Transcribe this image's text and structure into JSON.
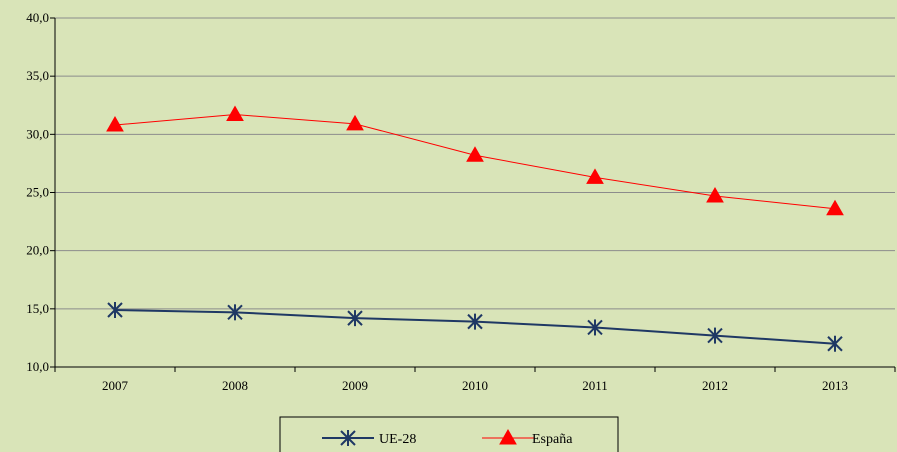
{
  "chart_data": {
    "type": "line",
    "title": "",
    "xlabel": "",
    "ylabel": "",
    "categories": [
      "2007",
      "2008",
      "2009",
      "2010",
      "2011",
      "2012",
      "2013"
    ],
    "ylim": [
      10,
      40
    ],
    "yticks": [
      10,
      15,
      20,
      25,
      30,
      35,
      40
    ],
    "ytick_labels": [
      "10,0",
      "15,0",
      "20,0",
      "25,0",
      "30,0",
      "35,0",
      "40,0"
    ],
    "grid": true,
    "legend_position": "bottom",
    "series": [
      {
        "name": "UE-28",
        "values": [
          14.9,
          14.7,
          14.2,
          13.9,
          13.4,
          12.7,
          12.0
        ],
        "color": "#1f3864",
        "marker": "asterisk"
      },
      {
        "name": "España",
        "values": [
          30.8,
          31.7,
          30.9,
          28.2,
          26.3,
          24.7,
          23.6
        ],
        "color": "#ff0000",
        "marker": "triangle"
      }
    ]
  }
}
